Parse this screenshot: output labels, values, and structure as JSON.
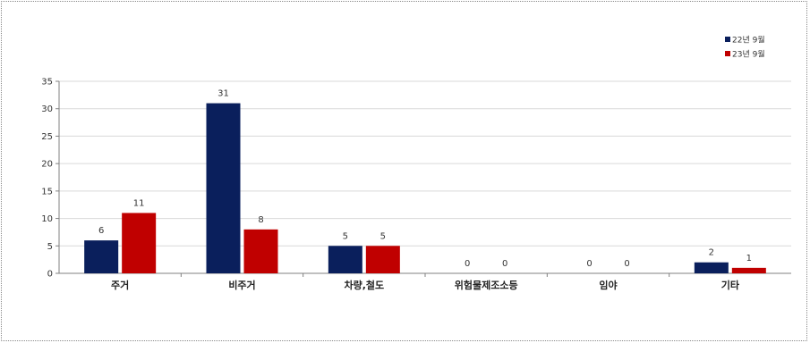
{
  "chart_data": {
    "type": "bar",
    "title": "",
    "xlabel": "",
    "ylabel": "",
    "categories": [
      "주거",
      "비주거",
      "차량,철도",
      "위험물제조소등",
      "임야",
      "기타"
    ],
    "series": [
      {
        "name": "22년 9월",
        "color": "#0a1f5c",
        "values": [
          6,
          31,
          5,
          0,
          0,
          2
        ]
      },
      {
        "name": "23년 9월",
        "color": "#c00000",
        "values": [
          11,
          8,
          5,
          0,
          0,
          1
        ]
      }
    ],
    "ylim": [
      0,
      35
    ],
    "yticks": [
      0,
      5,
      10,
      15,
      20,
      25,
      30,
      35
    ],
    "grid": true,
    "legend_position": "top-right",
    "data_labels": true
  }
}
